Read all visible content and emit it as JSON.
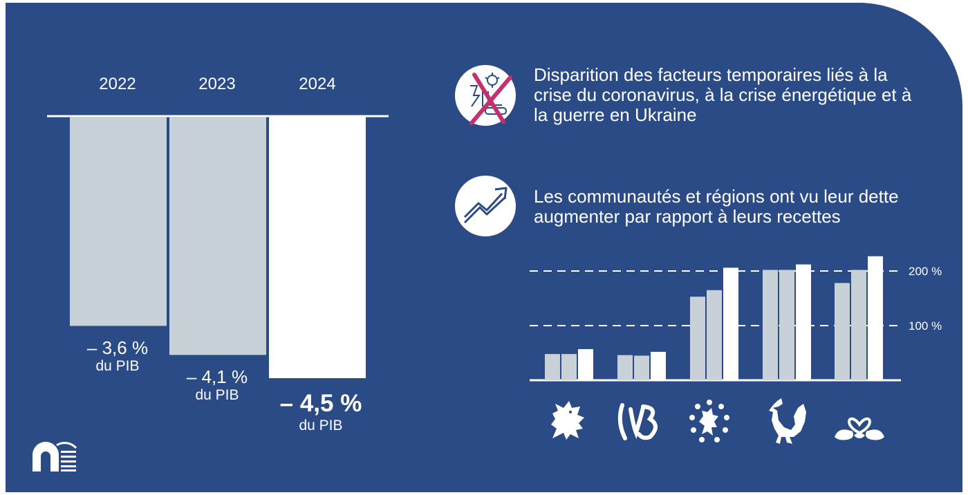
{
  "colors": {
    "background": "#2a4b85",
    "bar_past": "#c8d1d8",
    "bar_current": "#ffffff",
    "cross": "#c2326e",
    "text": "#ffffff"
  },
  "chart_data": [
    {
      "type": "bar",
      "categories": [
        "2022",
        "2023",
        "2024"
      ],
      "values": [
        -3.6,
        -4.1,
        -4.5
      ],
      "labels": [
        {
          "value": "– 3,6 %",
          "unit": "du PIB"
        },
        {
          "value": "– 4,1 %",
          "unit": "du PIB"
        },
        {
          "value": "– 4,5 %",
          "unit": "du PIB"
        }
      ],
      "highlight_index": 2
    },
    {
      "type": "bar",
      "groups": [
        "flanders-lion-icon",
        "brussels-iris-icon",
        "wallonia-emblem-icon",
        "wallonia-rooster-icon",
        "german-community-icon"
      ],
      "series_count": 3,
      "values": [
        [
          48,
          48,
          57
        ],
        [
          46,
          45,
          52
        ],
        [
          153,
          165,
          206
        ],
        [
          202,
          202,
          212
        ],
        [
          178,
          202,
          227
        ]
      ],
      "yticks": [
        {
          "value": 100,
          "label": "100 %"
        },
        {
          "value": 200,
          "label": "200 %"
        }
      ],
      "gridlines": "dashed"
    }
  ],
  "info": [
    {
      "icon": "crossed-crisis-icon",
      "text": "Disparition des facteurs temporaires liés à la crise du coronavirus, à la crise énergétique et à la guerre en Ukraine"
    },
    {
      "icon": "trend-up-icon",
      "text": "Les communautés et régions ont vu leur dette augmenter par rapport à leurs recettes"
    }
  ],
  "logo": "nbb-logo-icon"
}
